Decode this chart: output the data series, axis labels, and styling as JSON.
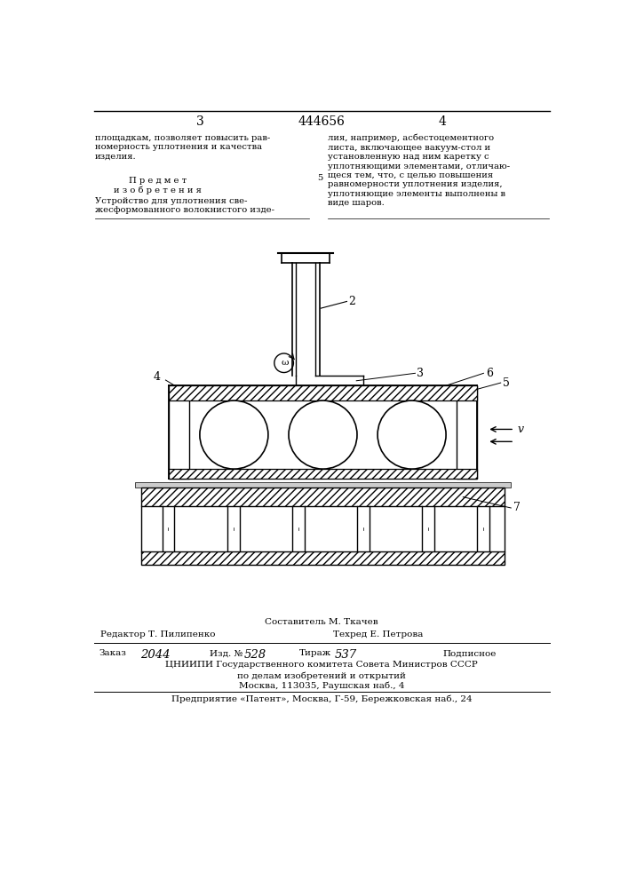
{
  "page_number_center": "444656",
  "page_number_left": "3",
  "page_number_right": "4",
  "top_left_text": "площадкам, позволяет повысить рав-\nномерность уплотнения и качества\nизделия.",
  "predmet_header": "П р е д м е т\nи з о б р е т е н и я",
  "predmet_body": "Устройство для уплотнения све-\nжесформованного волокнистого изде-",
  "top_right_text": "лия, например, асбестоцементного\nлиста, включающее вакуум-стол и\nустановленную над ним каретку с\nуплотняющими элементами, отличаю-\nщеся тем, что, с целью повышения\nравномерности уплотнения изделия,\nуплотняющие элементы выполнены в\nвиде шаров.",
  "line5_marker": "5",
  "footer_sostavitel": "Составитель М. Ткачев",
  "footer_redaktor": "Редактор Т. Пилипенко",
  "footer_tehred": "Техред Е. Петрова",
  "footer_zakaz_label": "Заказ",
  "footer_zakaz_val": "2044",
  "footer_izd_label": "Изд. №",
  "footer_izd_val": "528",
  "footer_tirazh_label": "Тираж",
  "footer_tirazh_val": "537",
  "footer_podpisnoe": "Подписное",
  "footer_tsniipi": "ЦНИИПИ Государственного комитета Совета Министров СССР",
  "footer_podelam": "по делам изобретений и открытий",
  "footer_moskva": "Москва, 113035, Раушская наб., 4",
  "footer_predpriyatie": "Предприятие «Патент», Москва, Г-59, Бережковская наб., 24",
  "bg_color": "#ffffff"
}
